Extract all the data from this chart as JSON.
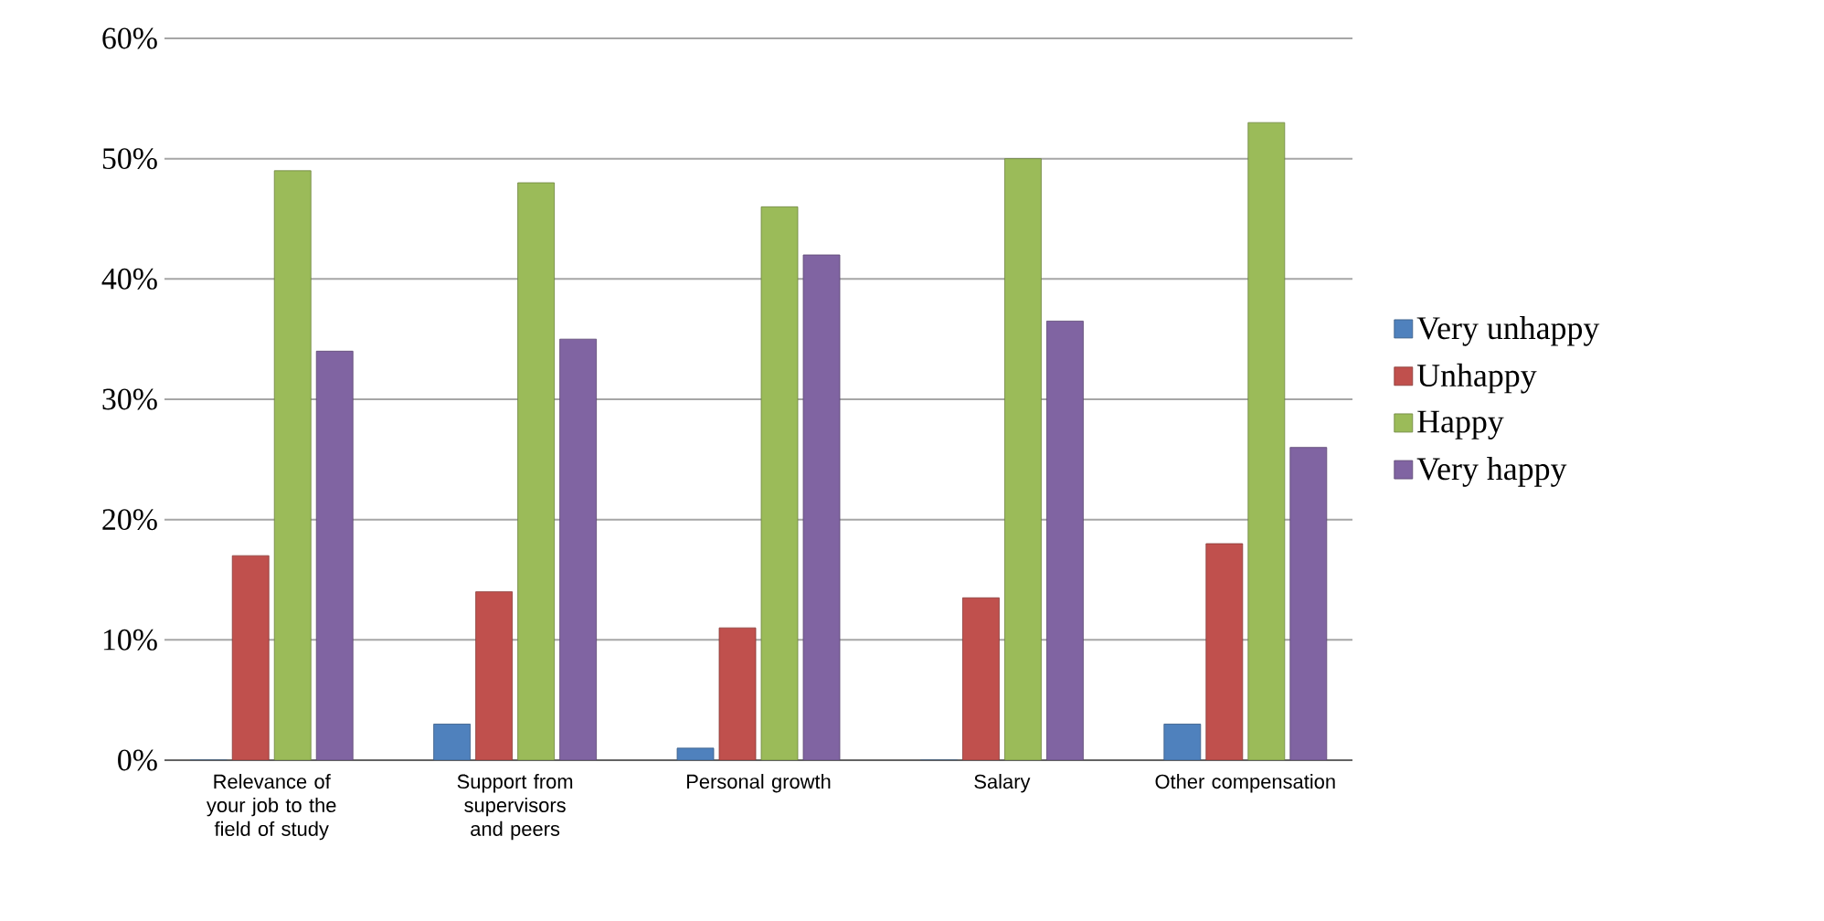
{
  "chart_data": {
    "type": "bar",
    "categories": [
      "Relevance of your job to the field of study",
      "Support from supervisors and peers",
      "Personal growth",
      "Salary",
      "Other compensation"
    ],
    "series": [
      {
        "name": "Very unhappy",
        "color": "#4f81bd",
        "values": [
          0,
          3,
          1,
          0,
          3
        ]
      },
      {
        "name": "Unhappy",
        "color": "#c0504d",
        "values": [
          17,
          14,
          11,
          13.5,
          18
        ]
      },
      {
        "name": "Happy",
        "color": "#9bbb59",
        "values": [
          49,
          48,
          46,
          50,
          53
        ]
      },
      {
        "name": "Very happy",
        "color": "#8064a2",
        "values": [
          34,
          35,
          42,
          36.5,
          26
        ]
      }
    ],
    "ylim": [
      0,
      60
    ],
    "yticks": [
      {
        "value": 0,
        "label": "0%"
      },
      {
        "value": 10,
        "label": "10%"
      },
      {
        "value": 20,
        "label": "20%"
      },
      {
        "value": 30,
        "label": "30%"
      },
      {
        "value": 40,
        "label": "40%"
      },
      {
        "value": 50,
        "label": "50%"
      },
      {
        "value": 60,
        "label": "60%"
      }
    ],
    "grid": "y",
    "legend": "right"
  }
}
